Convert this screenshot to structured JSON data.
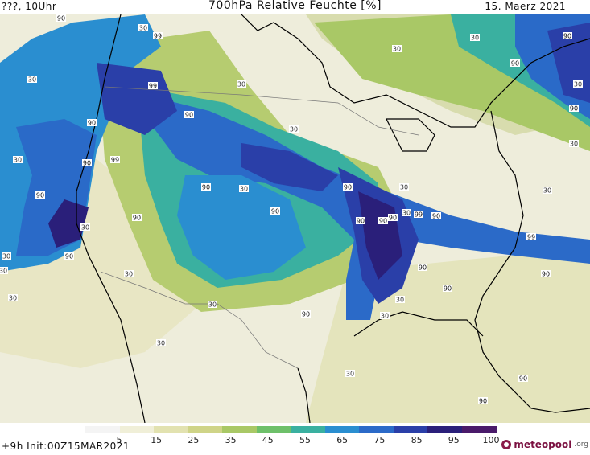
{
  "header": {
    "left": "???, 10Uhr",
    "title": "700hPa Relative Feuchte [%]",
    "date": "15. Maerz 2021"
  },
  "legend": {
    "ticks": [
      "5",
      "15",
      "25",
      "35",
      "45",
      "55",
      "65",
      "75",
      "85",
      "95",
      "100"
    ],
    "colors": [
      "#f4f4f4",
      "#f0efd8",
      "#e2e2b0",
      "#cfd488",
      "#a9c866",
      "#6ec06a",
      "#3ab0a0",
      "#2a8ed0",
      "#2b6ac8",
      "#2a3fa8",
      "#2a1f7a",
      "#4a1a6a"
    ]
  },
  "footer": {
    "run_info": "+9h  Init:00Z15MAR2021",
    "logo_text": "meteopool",
    "logo_suffix": ".org"
  },
  "map": {
    "contour_labels": [
      "30",
      "90",
      "99",
      "30",
      "90",
      "90",
      "99",
      "90",
      "90",
      "30",
      "30",
      "90",
      "30",
      "90",
      "99",
      "90",
      "90",
      "30",
      "90",
      "90",
      "30",
      "90",
      "90",
      "90",
      "90",
      "30",
      "90",
      "99",
      "30",
      "90",
      "30",
      "30",
      "30",
      "90",
      "90",
      "30",
      "30",
      "90",
      "30",
      "30",
      "30",
      "30",
      "30",
      "30",
      "99",
      "90",
      "90",
      "90",
      "30",
      "30",
      "30"
    ]
  }
}
